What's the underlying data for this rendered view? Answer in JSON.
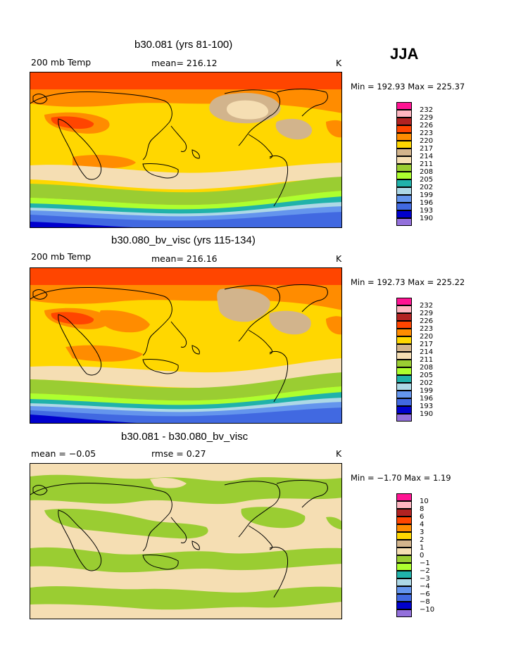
{
  "season": "JJA",
  "panels": [
    {
      "title": "b30.081 (yrs 81-100)",
      "left_label": "200 mb Temp",
      "mid_label": "mean= 216.12",
      "units": "K",
      "minmax": "Min = 192.93 Max = 225.37",
      "legend": [
        "232",
        "229",
        "226",
        "223",
        "220",
        "217",
        "214",
        "211",
        "208",
        "205",
        "202",
        "199",
        "196",
        "193",
        "190"
      ]
    },
    {
      "title": "b30.080_bv_visc (yrs 115-134)",
      "left_label": "200 mb Temp",
      "mid_label": "mean= 216.16",
      "units": "K",
      "minmax": "Min = 192.73 Max = 225.22",
      "legend": [
        "232",
        "229",
        "226",
        "223",
        "220",
        "217",
        "214",
        "211",
        "208",
        "205",
        "202",
        "199",
        "196",
        "193",
        "190"
      ]
    },
    {
      "title": "b30.081 - b30.080_bv_visc",
      "left_label": "mean =  −0.05",
      "mid_label": "rmse =    0.27",
      "units": "K",
      "minmax": "Min =  −1.70 Max =    1.19",
      "legend": [
        "10",
        "8",
        "6",
        "4",
        "3",
        "2",
        "1",
        "0",
        "−1",
        "−2",
        "−3",
        "−4",
        "−6",
        "−8",
        "−10"
      ]
    }
  ],
  "colors": {
    "scale": [
      "#ff1493",
      "#ffb6c1",
      "#b22222",
      "#ff4500",
      "#ff8c00",
      "#ffd700",
      "#d2b48c",
      "#f5deb3",
      "#9acd32",
      "#adff2f",
      "#20b2aa",
      "#add8e6",
      "#6495ed",
      "#4169e1",
      "#0000cd",
      "#9370db"
    ]
  }
}
